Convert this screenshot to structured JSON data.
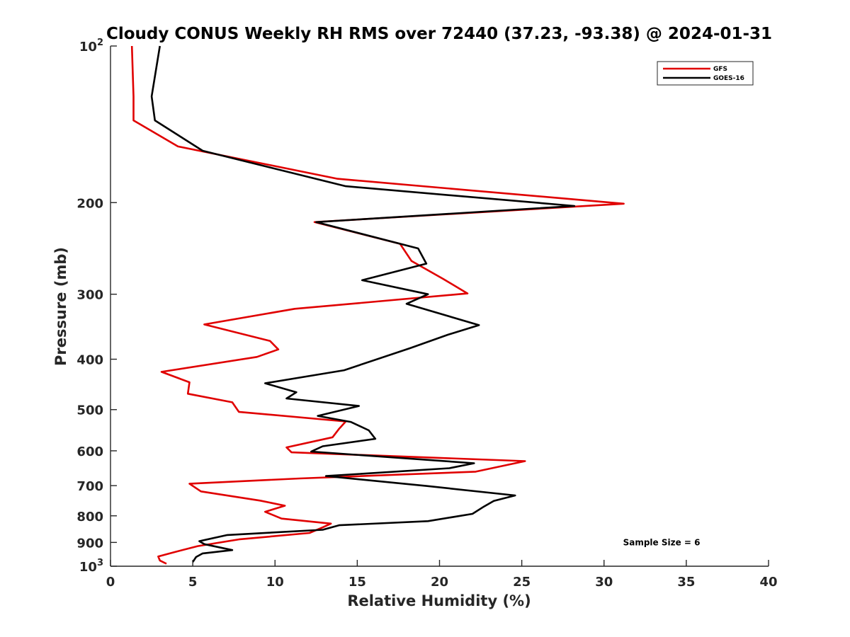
{
  "chart_data": {
    "type": "line",
    "title": "Cloudy CONUS Weekly RH RMS over 72440 (37.23, -93.38) @ 2024-01-31",
    "xlabel": "Relative Humidity (%)",
    "ylabel": "Pressure (mb)",
    "xlim": [
      0,
      40
    ],
    "ylim": [
      100,
      1000
    ],
    "y_scale": "log",
    "y_reversed": true,
    "x_ticks": [
      0,
      5,
      10,
      15,
      20,
      25,
      30,
      35,
      40
    ],
    "y_ticks": [
      {
        "value": 100,
        "base": "10",
        "exp": "2"
      },
      {
        "value": 200,
        "label": "200"
      },
      {
        "value": 300,
        "label": "300"
      },
      {
        "value": 400,
        "label": "400"
      },
      {
        "value": 500,
        "label": "500"
      },
      {
        "value": 600,
        "label": "600"
      },
      {
        "value": 700,
        "label": "700"
      },
      {
        "value": 800,
        "label": "800"
      },
      {
        "value": 900,
        "label": "900"
      },
      {
        "value": 1000,
        "base": "10",
        "exp": "3"
      }
    ],
    "grid": false,
    "legend_position": "top-right",
    "series": [
      {
        "name": "GFS",
        "color": "#e00000",
        "points": [
          [
            1.3,
            100
          ],
          [
            1.4,
            125
          ],
          [
            1.4,
            139
          ],
          [
            4.1,
            156
          ],
          [
            13.8,
            180
          ],
          [
            31.2,
            201
          ],
          [
            12.4,
            218
          ],
          [
            17.6,
            240
          ],
          [
            18.3,
            259
          ],
          [
            20.2,
            280
          ],
          [
            21.7,
            299
          ],
          [
            11.2,
            320
          ],
          [
            5.7,
            343
          ],
          [
            9.7,
            369
          ],
          [
            10.2,
            383
          ],
          [
            8.9,
            396
          ],
          [
            3.1,
            423
          ],
          [
            4.8,
            443
          ],
          [
            4.7,
            466
          ],
          [
            7.4,
            484
          ],
          [
            7.8,
            505
          ],
          [
            14.3,
            527
          ],
          [
            13.9,
            544
          ],
          [
            13.5,
            565
          ],
          [
            10.7,
            591
          ],
          [
            11.0,
            604
          ],
          [
            25.2,
            628
          ],
          [
            22.2,
            658
          ],
          [
            11.5,
            678
          ],
          [
            4.8,
            694
          ],
          [
            5.5,
            718
          ],
          [
            9.1,
            748
          ],
          [
            10.6,
            765
          ],
          [
            9.4,
            786
          ],
          [
            10.4,
            810
          ],
          [
            13.4,
            828
          ],
          [
            12.9,
            842
          ],
          [
            12.1,
            863
          ],
          [
            7.8,
            888
          ],
          [
            5.3,
            915
          ],
          [
            3.8,
            941
          ],
          [
            2.9,
            958
          ],
          [
            3.0,
            975
          ],
          [
            3.4,
            989
          ]
        ]
      },
      {
        "name": "GOES-16",
        "color": "#000000",
        "points": [
          [
            3.0,
            100
          ],
          [
            2.5,
            125
          ],
          [
            2.7,
            139
          ],
          [
            5.6,
            159
          ],
          [
            14.3,
            186
          ],
          [
            28.2,
            203
          ],
          [
            12.5,
            218
          ],
          [
            18.7,
            245
          ],
          [
            19.2,
            262
          ],
          [
            15.3,
            282
          ],
          [
            19.3,
            300
          ],
          [
            18.0,
            313
          ],
          [
            22.4,
            344
          ],
          [
            20.5,
            359
          ],
          [
            18.2,
            381
          ],
          [
            14.2,
            420
          ],
          [
            9.4,
            445
          ],
          [
            11.3,
            463
          ],
          [
            10.7,
            476
          ],
          [
            15.1,
            492
          ],
          [
            12.6,
            514
          ],
          [
            14.6,
            528
          ],
          [
            15.7,
            548
          ],
          [
            16.1,
            569
          ],
          [
            12.9,
            588
          ],
          [
            12.2,
            602
          ],
          [
            22.1,
            634
          ],
          [
            20.6,
            648
          ],
          [
            13.1,
            671
          ],
          [
            19.2,
            701
          ],
          [
            24.6,
            731
          ],
          [
            23.3,
            749
          ],
          [
            22.7,
            768
          ],
          [
            22.0,
            793
          ],
          [
            19.3,
            819
          ],
          [
            13.9,
            834
          ],
          [
            12.9,
            851
          ],
          [
            7.1,
            871
          ],
          [
            5.4,
            895
          ],
          [
            5.7,
            907
          ],
          [
            7.4,
            931
          ],
          [
            5.6,
            945
          ],
          [
            5.2,
            960
          ],
          [
            5.0,
            982
          ]
        ]
      }
    ],
    "annotations": [
      {
        "text": "Sample Size = 6",
        "x": 33.5,
        "y": 900
      }
    ]
  }
}
